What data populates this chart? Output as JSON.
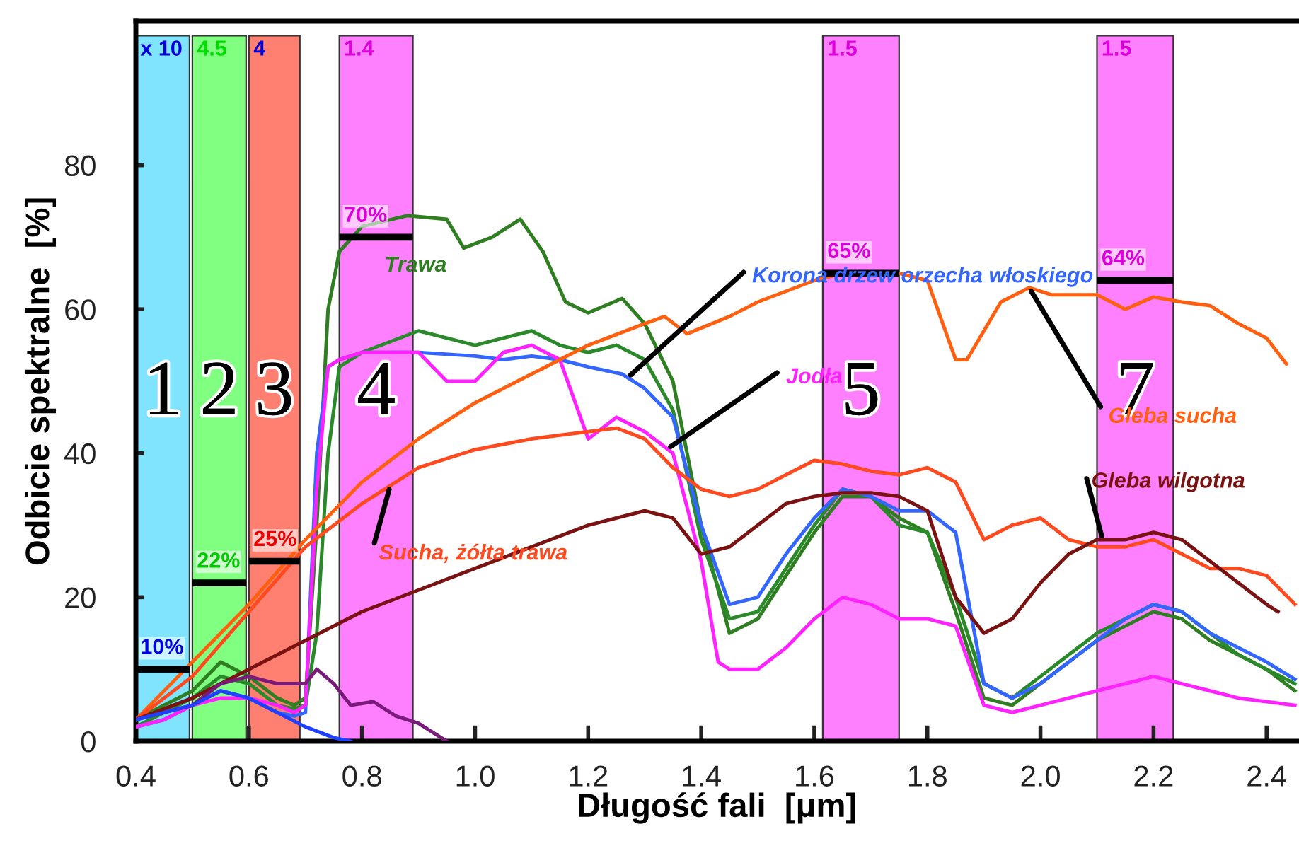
{
  "chart_data": {
    "type": "line",
    "xlabel": "Długość fali  [μm]",
    "ylabel": "Odbicie spektralne  [%]",
    "xlim": [
      0.4,
      2.455
    ],
    "ylim": [
      0,
      100
    ],
    "xticks": [
      {
        "value": 0.4,
        "label": "0.4"
      },
      {
        "value": 0.6,
        "label": "0.6"
      },
      {
        "value": 0.8,
        "label": "0.8"
      },
      {
        "value": 1.0,
        "label": "1.0"
      },
      {
        "value": 1.2,
        "label": "1.2"
      },
      {
        "value": 1.4,
        "label": "1.4"
      },
      {
        "value": 1.6,
        "label": "1.6"
      },
      {
        "value": 1.8,
        "label": "1.8"
      },
      {
        "value": 2.0,
        "label": "2.0"
      },
      {
        "value": 2.2,
        "label": "2.2"
      },
      {
        "value": 2.4,
        "label": "2.4"
      }
    ],
    "yticks": [
      0,
      20,
      40,
      60,
      80
    ],
    "grid": false,
    "legend": false,
    "marker": "none",
    "line_style": "solid",
    "bands": [
      {
        "axis": "x",
        "from": 0.4,
        "to": 0.495,
        "label": "1",
        "color": "#80e4ff"
      },
      {
        "axis": "x",
        "from": 0.5,
        "to": 0.595,
        "label": "2",
        "color": "#80ff80"
      },
      {
        "axis": "x",
        "from": 0.6,
        "to": 0.69,
        "label": "3",
        "color": "#ff8070"
      },
      {
        "axis": "x",
        "from": 0.76,
        "to": 0.89,
        "label": "4",
        "color": "#ff80ff"
      },
      {
        "axis": "x",
        "from": 1.615,
        "to": 1.75,
        "label": "5",
        "color": "#ff80ff"
      },
      {
        "axis": "x",
        "from": 2.1,
        "to": 2.235,
        "label": "7",
        "color": "#ff80ff"
      }
    ],
    "annotations": [
      "x 10",
      "4.5",
      "4",
      "1.4",
      "1.5",
      "1.5"
    ],
    "ref_lines": [
      {
        "axis": "y",
        "value": 10,
        "label": "10%"
      },
      {
        "axis": "y",
        "value": 22,
        "label": "22%"
      },
      {
        "axis": "y",
        "value": 25,
        "label": "25%"
      },
      {
        "axis": "y",
        "value": 70,
        "label": "70%"
      },
      {
        "axis": "y",
        "value": 65,
        "label": "65%"
      },
      {
        "axis": "y",
        "value": 64,
        "label": "64%"
      }
    ],
    "series": [
      {
        "name": "Trawa",
        "color": "#2f7f22",
        "x": [
          0.4,
          0.45,
          0.5,
          0.55,
          0.6,
          0.65,
          0.68,
          0.7,
          0.72,
          0.74,
          0.76,
          0.8,
          0.88,
          0.95,
          0.98,
          1.03,
          1.08,
          1.12,
          1.16,
          1.2,
          1.26,
          1.3,
          1.35,
          1.4,
          1.45,
          1.5,
          1.55,
          1.6,
          1.65,
          1.7,
          1.75,
          1.8,
          1.85,
          1.9,
          1.95,
          2.0,
          2.05,
          2.1,
          2.15,
          2.2,
          2.25,
          2.3,
          2.35,
          2.4,
          2.45
        ],
        "values": [
          3,
          5,
          7,
          11,
          9,
          6,
          5,
          6,
          30,
          60,
          68,
          71.5,
          73,
          72.5,
          68.5,
          70,
          72.5,
          68,
          61,
          59.5,
          61.5,
          58,
          50,
          30,
          15,
          17,
          23,
          29,
          34,
          34,
          31,
          29,
          18,
          6,
          5,
          8,
          11,
          14,
          16,
          18,
          17,
          14,
          12,
          10,
          7
        ]
      },
      {
        "color": "#2a8a2a",
        "x": [
          0.4,
          0.45,
          0.5,
          0.55,
          0.6,
          0.65,
          0.68,
          0.7,
          0.72,
          0.74,
          0.76,
          0.8,
          0.9,
          0.95,
          1.0,
          1.05,
          1.1,
          1.15,
          1.2,
          1.25,
          1.3,
          1.35,
          1.4,
          1.45,
          1.5,
          1.55,
          1.6,
          1.65,
          1.7,
          1.75,
          1.8,
          1.85,
          1.9,
          1.95,
          2.0,
          2.05,
          2.1,
          2.15,
          2.2,
          2.25,
          2.3,
          2.35,
          2.4,
          2.45
        ],
        "values": [
          2,
          4,
          6,
          9,
          8,
          5,
          4.5,
          5,
          15,
          40,
          52,
          54,
          57,
          56,
          55,
          56,
          57,
          55,
          54,
          55,
          53,
          46,
          28,
          17,
          18,
          24,
          30,
          35,
          34,
          30,
          29,
          20,
          8,
          6,
          9,
          12,
          15,
          17,
          19,
          18,
          15,
          12,
          10,
          8
        ]
      },
      {
        "name": "Korona drzew orzecha włoskiego",
        "color": "#3366ff",
        "x": [
          0.4,
          0.45,
          0.5,
          0.55,
          0.6,
          0.65,
          0.68,
          0.7,
          0.72,
          0.74,
          0.76,
          0.8,
          0.9,
          1.0,
          1.05,
          1.1,
          1.15,
          1.2,
          1.26,
          1.3,
          1.35,
          1.4,
          1.45,
          1.5,
          1.55,
          1.6,
          1.65,
          1.7,
          1.75,
          1.8,
          1.85,
          1.9,
          1.95,
          2.0,
          2.05,
          2.1,
          2.15,
          2.2,
          2.25,
          2.3,
          2.35,
          2.4,
          2.45
        ],
        "values": [
          2,
          3,
          5,
          7,
          6,
          4,
          3.5,
          4,
          40,
          52,
          53,
          54,
          54,
          53.5,
          53,
          53.5,
          53,
          52,
          51,
          49,
          45,
          30,
          19,
          20,
          26,
          31,
          35,
          34,
          32,
          32,
          29,
          8,
          6,
          8,
          11,
          14,
          17,
          19,
          18,
          15,
          13,
          11,
          8.6
        ]
      },
      {
        "name": "Jodła",
        "color": "#ff22ff",
        "x": [
          0.4,
          0.45,
          0.5,
          0.55,
          0.6,
          0.65,
          0.68,
          0.7,
          0.72,
          0.74,
          0.76,
          0.8,
          0.9,
          0.95,
          1.0,
          1.05,
          1.1,
          1.15,
          1.2,
          1.25,
          1.3,
          1.35,
          1.4,
          1.43,
          1.45,
          1.5,
          1.55,
          1.6,
          1.65,
          1.7,
          1.75,
          1.8,
          1.85,
          1.9,
          1.95,
          2.0,
          2.05,
          2.1,
          2.15,
          2.2,
          2.25,
          2.3,
          2.35,
          2.4,
          2.45
        ],
        "values": [
          2,
          3,
          5,
          6,
          6,
          5,
          4,
          5,
          35,
          52,
          53,
          54,
          54,
          50,
          50,
          54,
          55,
          53,
          42,
          45,
          43,
          40,
          25,
          11,
          10,
          10,
          13,
          17,
          20,
          19,
          17,
          17,
          16,
          5,
          4,
          5,
          6,
          7,
          8,
          9,
          8,
          7,
          6,
          5.5,
          5
        ]
      },
      {
        "name": "Gleba sucha",
        "color": "#ff6010",
        "x": [
          0.4,
          0.5,
          0.6,
          0.7,
          0.8,
          0.9,
          1.0,
          1.1,
          1.2,
          1.3,
          1.335,
          1.375,
          1.45,
          1.5,
          1.6,
          1.65,
          1.7,
          1.75,
          1.8,
          1.85,
          1.87,
          1.93,
          1.98,
          2.02,
          2.1,
          2.15,
          2.2,
          2.25,
          2.3,
          2.35,
          2.4,
          2.435
        ],
        "values": [
          3,
          11,
          19,
          28,
          36,
          42,
          47,
          51,
          55,
          58,
          59,
          56.6,
          59,
          61,
          64,
          65,
          65,
          65,
          64,
          53,
          53,
          61,
          63,
          62,
          62,
          60,
          61.7,
          61,
          60.5,
          58,
          56,
          52.4
        ]
      },
      {
        "name": "Sucha, żółta trawa",
        "color": "#ff4a20",
        "x": [
          0.4,
          0.5,
          0.6,
          0.7,
          0.8,
          0.9,
          1.0,
          1.1,
          1.2,
          1.25,
          1.3,
          1.35,
          1.4,
          1.45,
          1.5,
          1.55,
          1.6,
          1.65,
          1.7,
          1.75,
          1.8,
          1.85,
          1.9,
          1.95,
          2.0,
          2.05,
          2.1,
          2.15,
          2.2,
          2.25,
          2.3,
          2.35,
          2.4,
          2.45
        ],
        "values": [
          3,
          9,
          18,
          27,
          33,
          38,
          40.5,
          42,
          43,
          43.5,
          42,
          38,
          35,
          34,
          35,
          37,
          39,
          38.5,
          37.5,
          37,
          38,
          36,
          28,
          30,
          31,
          28,
          27,
          27,
          28,
          26,
          24,
          24,
          23,
          19
        ]
      },
      {
        "name": "Gleba wilgotna",
        "color": "#7a1212",
        "x": [
          0.4,
          0.5,
          0.6,
          0.7,
          0.8,
          0.9,
          1.0,
          1.1,
          1.2,
          1.3,
          1.35,
          1.4,
          1.45,
          1.5,
          1.55,
          1.6,
          1.65,
          1.7,
          1.75,
          1.8,
          1.85,
          1.9,
          1.95,
          2.0,
          2.05,
          2.1,
          2.15,
          2.2,
          2.25,
          2.3,
          2.35,
          2.4,
          2.42
        ],
        "values": [
          3,
          6,
          10,
          14,
          18,
          21,
          24,
          27,
          30,
          32,
          31,
          26,
          27,
          30,
          33,
          34,
          34.5,
          34.5,
          34,
          32,
          20,
          15,
          17,
          22,
          26,
          28,
          28,
          29,
          28,
          25,
          22,
          19,
          18
        ]
      },
      {
        "color": "#7a1a7a",
        "x": [
          0.4,
          0.5,
          0.55,
          0.6,
          0.65,
          0.7,
          0.72,
          0.75,
          0.78,
          0.82,
          0.86,
          0.9,
          0.95
        ],
        "values": [
          3,
          5,
          8,
          9,
          8,
          8,
          10,
          8,
          5,
          5.5,
          3.5,
          2.5,
          0
        ]
      },
      {
        "color": "#2040ff",
        "x": [
          0.4,
          0.5,
          0.55,
          0.6,
          0.65,
          0.7,
          0.75,
          0.78
        ],
        "values": [
          3,
          5,
          7,
          6,
          4,
          2,
          0.5,
          0
        ]
      }
    ]
  }
}
